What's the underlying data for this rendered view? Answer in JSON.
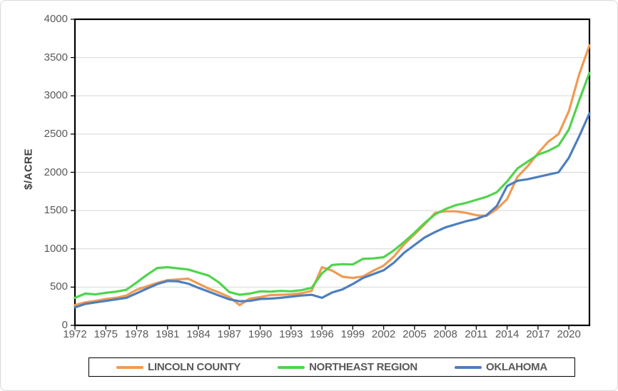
{
  "chart_data": {
    "type": "line",
    "title": "",
    "ylabel": "$/ACRE",
    "xlabel": "",
    "ylim": [
      0,
      4000
    ],
    "ytick_step": 500,
    "ytick_labels": [
      "0",
      "500",
      "1000",
      "1500",
      "2000",
      "2500",
      "3000",
      "3500",
      "4000"
    ],
    "xtick_labels": [
      "1972",
      "1975",
      "1978",
      "1981",
      "1984",
      "1987",
      "1990",
      "1993",
      "1996",
      "1999",
      "2002",
      "2005",
      "2008",
      "2011",
      "2014",
      "2017",
      "2020"
    ],
    "x_range": [
      1972,
      2022
    ],
    "grid": "horizontal",
    "legend_position": "bottom",
    "x": [
      1972,
      1973,
      1974,
      1975,
      1976,
      1977,
      1978,
      1979,
      1980,
      1981,
      1982,
      1983,
      1984,
      1985,
      1986,
      1987,
      1988,
      1989,
      1990,
      1991,
      1992,
      1993,
      1994,
      1995,
      1996,
      1997,
      1998,
      1999,
      2000,
      2001,
      2002,
      2003,
      2004,
      2005,
      2006,
      2007,
      2008,
      2009,
      2010,
      2011,
      2012,
      2013,
      2014,
      2015,
      2016,
      2017,
      2018,
      2019,
      2020,
      2021,
      2022
    ],
    "series": [
      {
        "name": "LINCOLN COUNTY",
        "color": "#F09B51",
        "values": [
          265,
          300,
          320,
          345,
          360,
          390,
          465,
          510,
          555,
          590,
          600,
          610,
          545,
          480,
          430,
          370,
          265,
          350,
          370,
          395,
          400,
          405,
          420,
          450,
          760,
          715,
          635,
          620,
          640,
          715,
          780,
          900,
          1060,
          1190,
          1320,
          1470,
          1490,
          1490,
          1470,
          1440,
          1430,
          1520,
          1650,
          1940,
          2080,
          2250,
          2400,
          2500,
          2800,
          3280,
          3660
        ]
      },
      {
        "name": "NORTHEAST REGION",
        "color": "#4FD44C",
        "values": [
          360,
          415,
          405,
          425,
          440,
          465,
          560,
          660,
          750,
          760,
          745,
          730,
          690,
          650,
          560,
          435,
          400,
          415,
          445,
          440,
          450,
          445,
          460,
          490,
          680,
          790,
          800,
          795,
          870,
          875,
          890,
          980,
          1090,
          1210,
          1340,
          1450,
          1520,
          1570,
          1600,
          1640,
          1680,
          1740,
          1880,
          2050,
          2140,
          2230,
          2280,
          2350,
          2560,
          2940,
          3300
        ]
      },
      {
        "name": "OKLAHOMA",
        "color": "#4E7EBE",
        "values": [
          235,
          280,
          300,
          320,
          340,
          360,
          420,
          480,
          540,
          580,
          575,
          545,
          490,
          440,
          390,
          340,
          315,
          320,
          345,
          350,
          360,
          375,
          390,
          400,
          360,
          430,
          470,
          540,
          620,
          670,
          720,
          820,
          950,
          1050,
          1150,
          1220,
          1280,
          1320,
          1360,
          1390,
          1440,
          1560,
          1820,
          1890,
          1910,
          1940,
          1970,
          2000,
          2190,
          2470,
          2770
        ]
      }
    ],
    "colors": {
      "axis_line": "#000000",
      "gridline": "#d6d6d6",
      "tick_text": "#595959",
      "axis_title_text": "#404040",
      "legend_border": "#000000",
      "figure_border": "#d9d9d9"
    }
  }
}
